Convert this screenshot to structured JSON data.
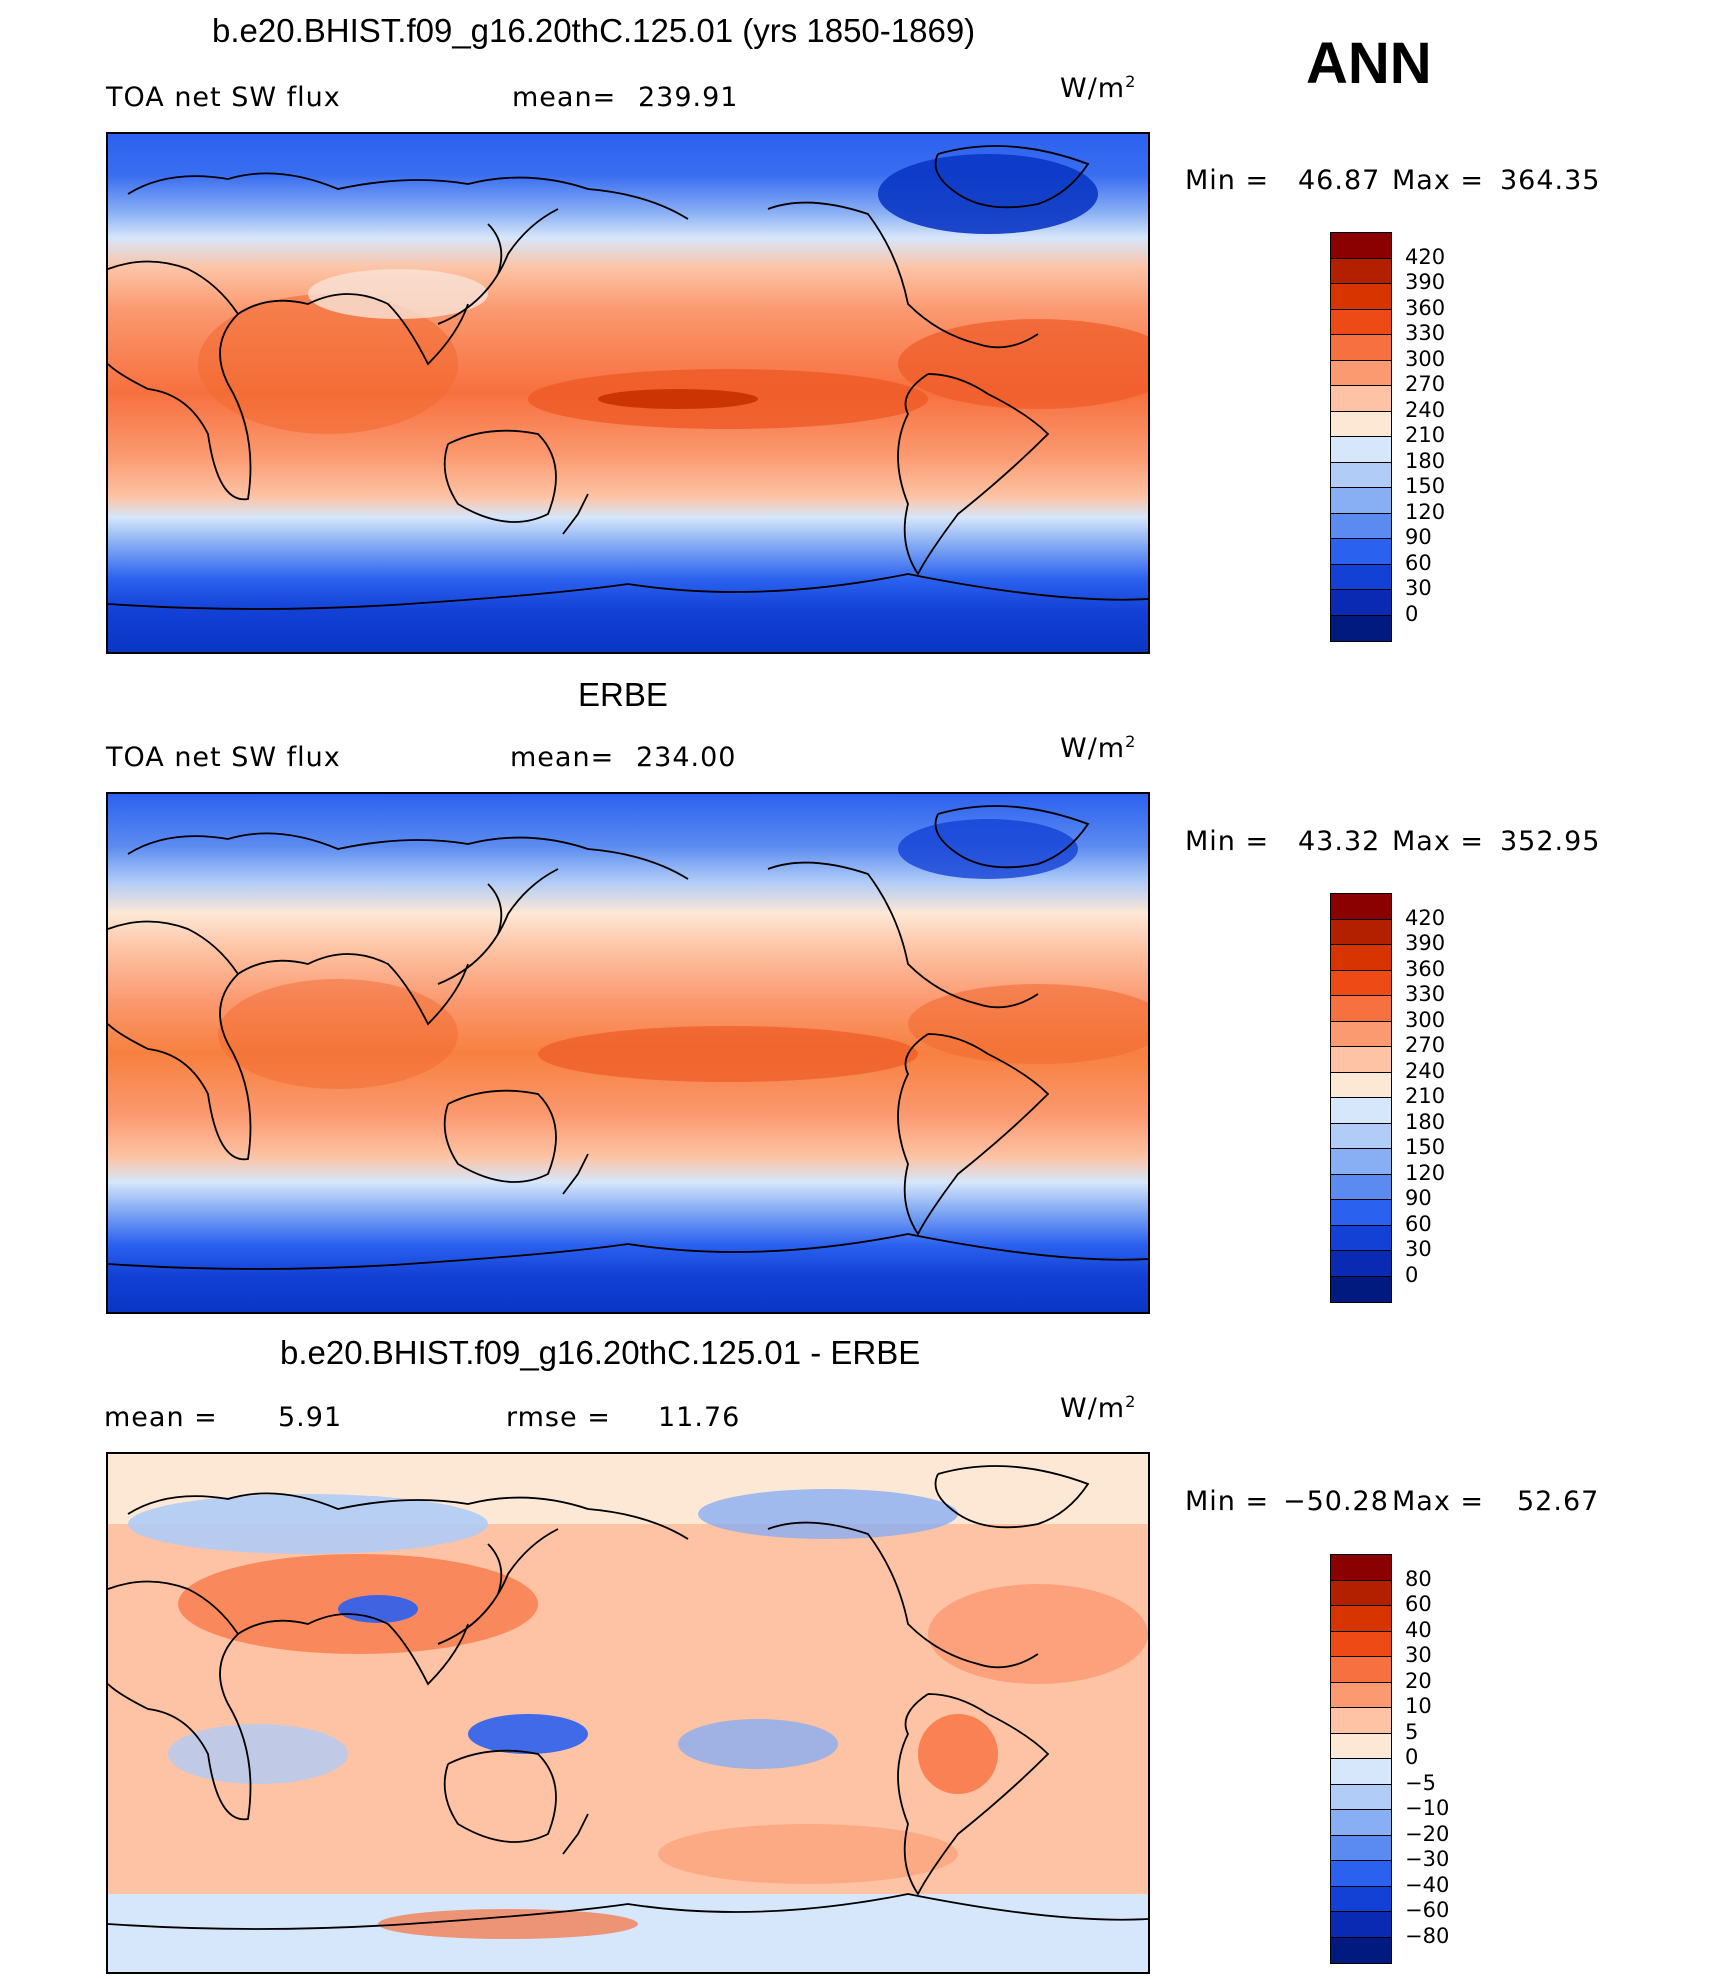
{
  "season": "ANN",
  "units": "W/m",
  "units_sup": "2",
  "panels": [
    {
      "id": "model",
      "title": "b.e20.BHIST.f09_g16.20thC.125.01 (yrs 1850-1869)",
      "left_label": "TOA net SW flux",
      "stat_label": "mean=",
      "stat_value": "239.91",
      "stat2_label": "",
      "stat2_value": "",
      "min_label": "Min =",
      "min_value": "46.87",
      "max_label": "Max =",
      "max_value": "364.35",
      "colorbar_labels": [
        "420",
        "390",
        "360",
        "330",
        "300",
        "270",
        "240",
        "210",
        "180",
        "150",
        "120",
        "90",
        "60",
        "30",
        "0"
      ]
    },
    {
      "id": "obs",
      "title": "ERBE",
      "left_label": "TOA net SW flux",
      "stat_label": "mean=",
      "stat_value": "234.00",
      "stat2_label": "",
      "stat2_value": "",
      "min_label": "Min =",
      "min_value": "43.32",
      "max_label": "Max =",
      "max_value": "352.95",
      "colorbar_labels": [
        "420",
        "390",
        "360",
        "330",
        "300",
        "270",
        "240",
        "210",
        "180",
        "150",
        "120",
        "90",
        "60",
        "30",
        "0"
      ]
    },
    {
      "id": "diff",
      "title": "b.e20.BHIST.f09_g16.20thC.125.01 - ERBE",
      "left_label": "",
      "stat_label": "mean =",
      "stat_value": "5.91",
      "stat2_label": "rmse =",
      "stat2_value": "11.76",
      "min_label": "Min =",
      "min_value": "−50.28",
      "max_label": "Max =",
      "max_value": "52.67",
      "colorbar_labels": [
        "80",
        "60",
        "40",
        "30",
        "20",
        "10",
        "5",
        "0",
        "−5",
        "−10",
        "−20",
        "−30",
        "−40",
        "−60",
        "−80"
      ]
    }
  ],
  "colorbar_colors": [
    "#8b0000",
    "#b22000",
    "#d83400",
    "#ee4a16",
    "#f7703f",
    "#fb9970",
    "#fdc3a4",
    "#fde8d6",
    "#d6e6fb",
    "#b0ccf7",
    "#88aef4",
    "#5b8bf0",
    "#2b61ef",
    "#1341d6",
    "#0a2ab3",
    "#001a80"
  ]
}
